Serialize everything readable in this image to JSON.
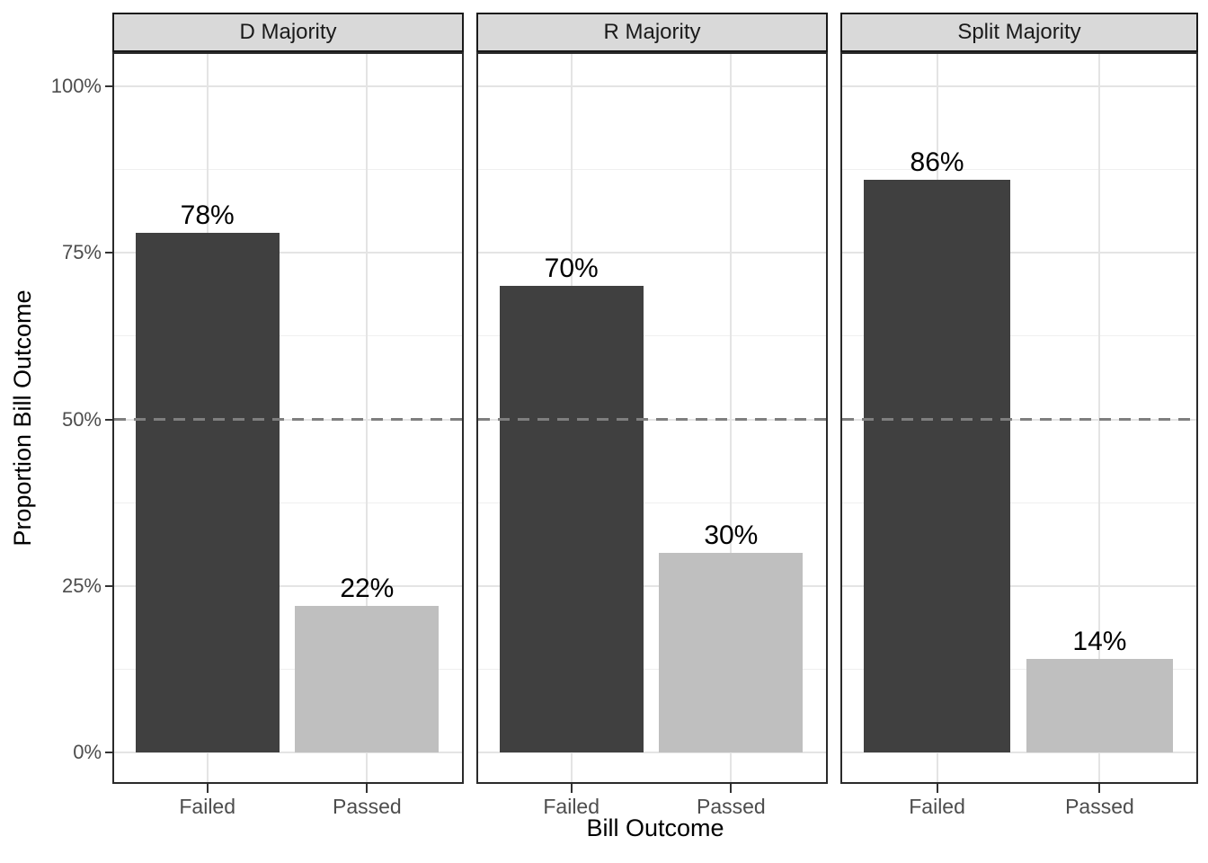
{
  "chart_data": {
    "type": "bar",
    "title": "",
    "xlabel": "Bill Outcome",
    "ylabel": "Proportion Bill Outcome",
    "categories": [
      "Failed",
      "Passed"
    ],
    "facets": [
      {
        "label": "D Majority",
        "values": [
          78,
          22
        ],
        "value_labels": [
          "78%",
          "22%"
        ]
      },
      {
        "label": "R Majority",
        "values": [
          70,
          30
        ],
        "value_labels": [
          "70%",
          "30%"
        ]
      },
      {
        "label": "Split Majority",
        "values": [
          86,
          14
        ],
        "value_labels": [
          "86%",
          "14%"
        ]
      }
    ],
    "bar_colors": [
      "#404040",
      "#bfbfbf"
    ],
    "y_axis": {
      "range": [
        0,
        100
      ],
      "ticks": [
        0,
        25,
        50,
        75,
        100
      ],
      "tick_labels": [
        "0%",
        "25%",
        "50%",
        "75%",
        "100%"
      ],
      "minor_ticks": [
        12.5,
        37.5,
        62.5,
        87.5
      ]
    },
    "reference_line": {
      "y": 50,
      "style": "dashed",
      "color": "#7f7f7f"
    },
    "legend": "none",
    "grid": "on",
    "colors": {
      "panel_background": "#ffffff",
      "strip_background": "#d9d9d9",
      "grid_major": "#e4e4e4",
      "grid_minor": "#efefef",
      "axis_text": "#4d4d4d",
      "tick_mark": "#333333",
      "label_text": "#000000"
    }
  }
}
